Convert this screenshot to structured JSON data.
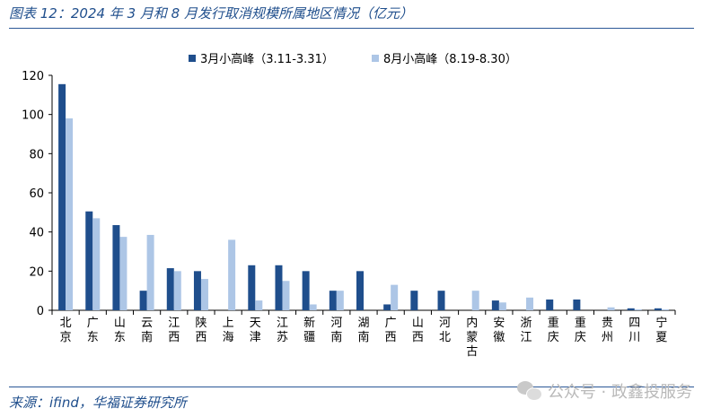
{
  "figure": {
    "title": "图表 12：2024 年 3 月和 8 月发行取消规模所属地区情况（亿元）",
    "source": "来源：ifind，华福证券研究所",
    "watermark": "公众号 · 政鑫投服务"
  },
  "colors": {
    "series1": "#1f4e8c",
    "series2": "#adc6e6",
    "rule": "#2b5797",
    "text": "#1f4e8c"
  },
  "chart_data": {
    "type": "bar",
    "title": "",
    "xlabel": "",
    "ylabel": "",
    "ylim": [
      0,
      120
    ],
    "yticks": [
      0,
      20,
      40,
      60,
      80,
      100,
      120
    ],
    "grid": false,
    "legend_position": "top-center",
    "categories": [
      "北京",
      "广东",
      "山东",
      "云南",
      "江西",
      "陕西",
      "上海",
      "天津",
      "江苏",
      "新疆",
      "河南",
      "湖南",
      "广西",
      "山西",
      "河北",
      "内蒙古",
      "安徽",
      "浙江",
      "重庆",
      "重庆",
      "贵州",
      "四川",
      "宁夏"
    ],
    "series": [
      {
        "name": "3月小高峰（3.11-3.31）",
        "values": [
          115.5,
          50.5,
          43.5,
          10.0,
          21.5,
          20.0,
          0,
          23.0,
          23.0,
          20.0,
          10.0,
          20.0,
          3.0,
          10.0,
          10.0,
          0,
          5.0,
          0,
          5.5,
          5.5,
          0,
          1.0,
          1.0
        ]
      },
      {
        "name": "8月小高峰（8.19-8.30）",
        "values": [
          98.0,
          47.0,
          37.5,
          38.5,
          20.0,
          16.0,
          36.0,
          5.0,
          15.0,
          3.0,
          10.0,
          0,
          13.0,
          0,
          0,
          10.0,
          4.0,
          6.5,
          0,
          0,
          1.5,
          0.5,
          0.5
        ]
      }
    ]
  }
}
